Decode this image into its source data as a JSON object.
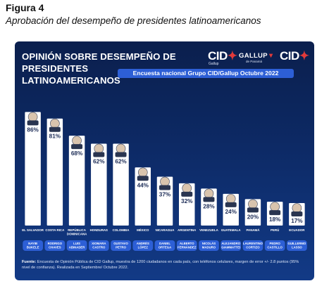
{
  "figure": {
    "label": "Figura 4",
    "caption": "Aprobación del desempeño de presidentes latinoamericanos"
  },
  "panel": {
    "title_line1": "OPINIÓN SOBRE DESEMPEÑO DE PRESIDENTES",
    "title_line2": "LATINOAMERICANOS",
    "subtitle": "Encuesta nacional Grupo CID/Gallup Octubre 2022",
    "logos": {
      "cid_left": "CID",
      "cid_left_sub": "Gallup",
      "gallup": "GALLUP",
      "gallup_sub": "de Panamá",
      "cid_right": "CID"
    },
    "source_label": "Fuente:",
    "source_text": "Encuesta de Opinión Pública de CID Gallup, muestra de 1200 ciudadanos en cada país, con teléfonos celulares, margen de error +/- 2.8 puntos (95% nivel de confianza). Realizada en Septiembre/ Octubre 2022."
  },
  "colors": {
    "panel_top": "#0b1f4d",
    "panel_bottom": "#123a86",
    "bar": "#ffffff",
    "pill": "#2d5fd6",
    "text_on_dark": "#ffffff",
    "bar_label": "#1a2a55"
  },
  "chart_data": {
    "type": "bar",
    "title": "OPINIÓN SOBRE DESEMPEÑO DE PRESIDENTES LATINOAMERICANOS",
    "subtitle": "Encuesta nacional Grupo CID/Gallup Octubre 2022",
    "ylim": [
      0,
      100
    ],
    "grid": false,
    "value_suffix": "%",
    "categories": [
      "EL SALVADOR",
      "COSTA RICA",
      "REPÚBLICA DOMINICANA",
      "HONDURAS",
      "COLOMBIA",
      "MÉXICO",
      "NICARAGUA",
      "ARGENTINA",
      "VENEZUELA",
      "GUATEMALA",
      "PANAMÁ",
      "PERÚ",
      "ECUADOR"
    ],
    "presidents": [
      "NAYIB BUKELE",
      "RODRIGO CHAVES",
      "LUIS ABINADER",
      "XIOMARA CASTRO",
      "GUSTAVO PETRO",
      "ANDRÉS LÓPEZ",
      "DANIEL ORTEGA",
      "ALBERTO FERNÁNDEZ",
      "NICOLÁS MADURO",
      "ALEJANDRO GIAMMATTEI",
      "LAURENTINO CORTIZO",
      "PEDRO CASTILLO",
      "GUILLERMO LASSO"
    ],
    "values": [
      86,
      81,
      68,
      62,
      62,
      44,
      37,
      32,
      28,
      24,
      20,
      18,
      17
    ]
  }
}
